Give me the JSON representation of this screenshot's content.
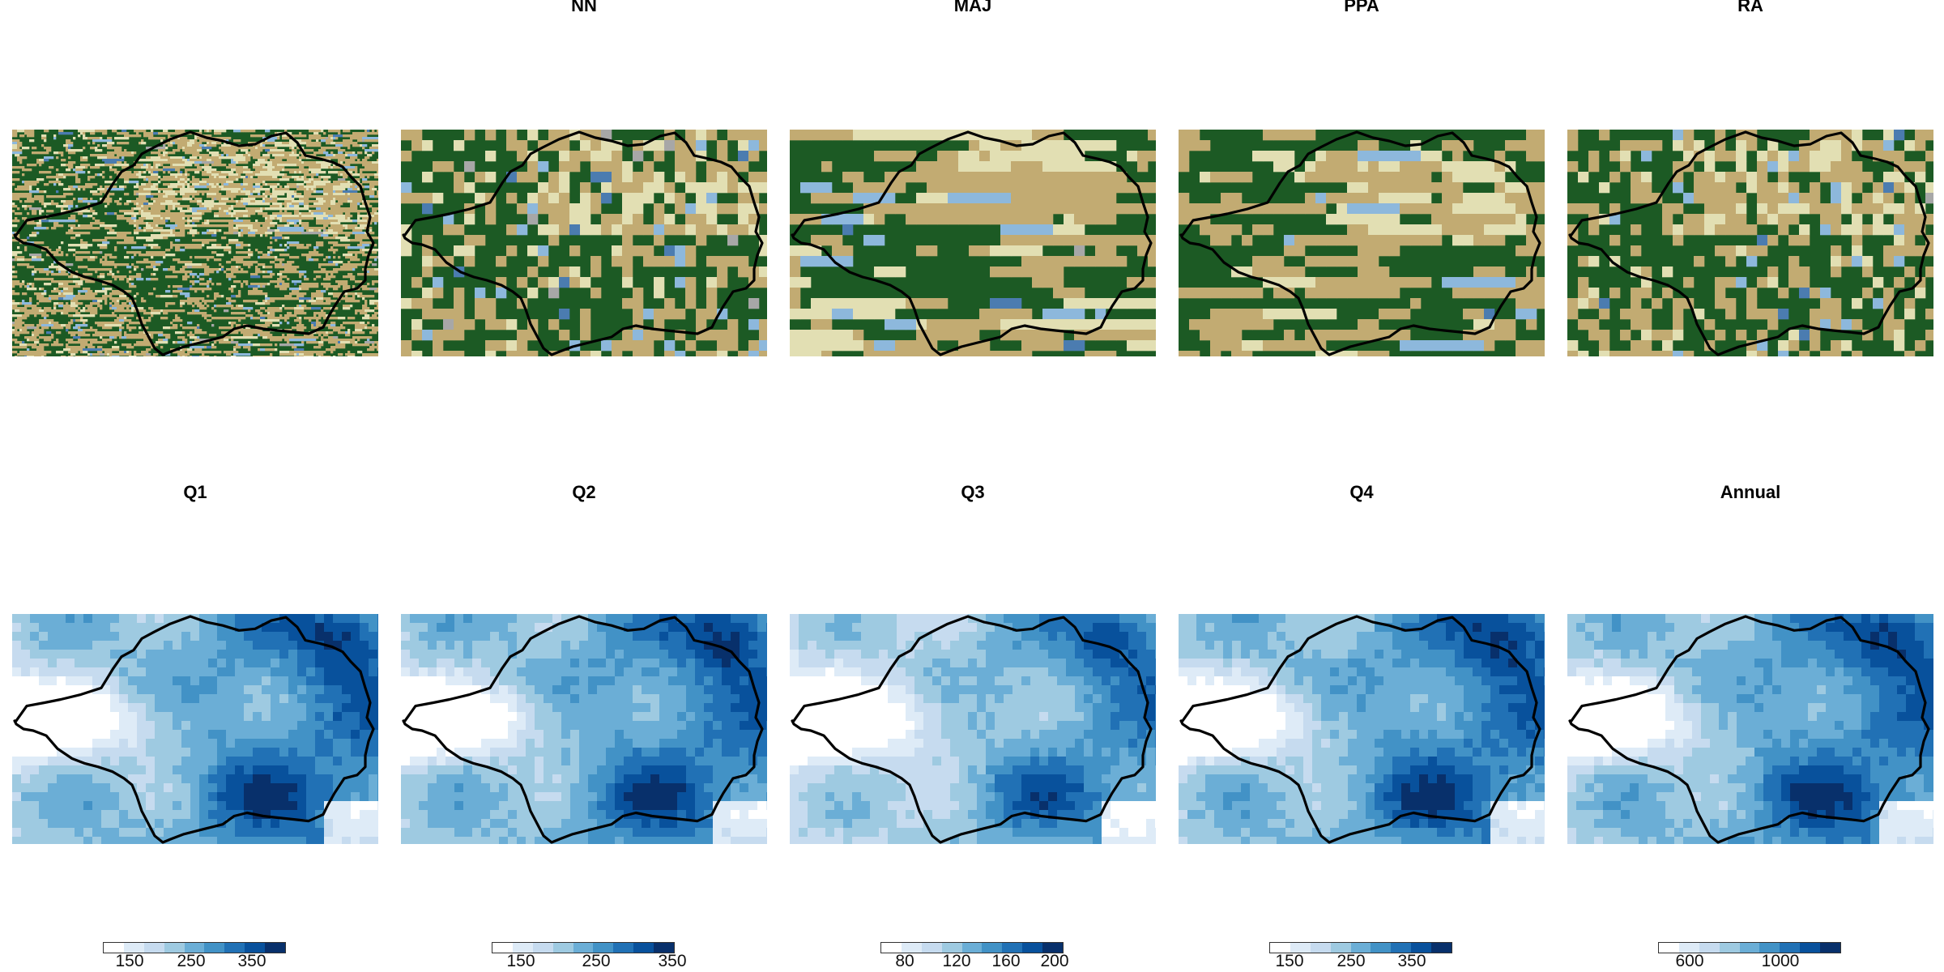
{
  "colors": {
    "landcover": {
      "forest": "#1c5a24",
      "open": "#c2ab72",
      "light": "#e2dfb3",
      "water": "#8db8dc",
      "wetland": "#4b7cb0",
      "bare": "#a7a7a7",
      "green": "#4d9a4a",
      "yellow": "#e6e02c"
    },
    "blues": [
      "#ffffff",
      "#deebf7",
      "#c6dbef",
      "#9ecae1",
      "#6baed6",
      "#4292c6",
      "#2171b5",
      "#08519c",
      "#08306b"
    ],
    "boundary": "#000000"
  },
  "top_row": [
    {
      "title": "",
      "type": "landcover-fine"
    },
    {
      "title": "NN",
      "type": "landcover-coarse"
    },
    {
      "title": "MAJ",
      "type": "landcover-coarse"
    },
    {
      "title": "PPA",
      "type": "landcover-coarse"
    },
    {
      "title": "RA",
      "type": "landcover-coarse"
    }
  ],
  "bottom_row": [
    {
      "title": "Q1",
      "legend": {
        "ticks": [
          "150",
          "250",
          "350"
        ]
      }
    },
    {
      "title": "Q2",
      "legend": {
        "ticks": [
          "150",
          "250",
          "350"
        ]
      }
    },
    {
      "title": "Q3",
      "legend": {
        "ticks": [
          "80",
          "120",
          "160",
          "200"
        ]
      }
    },
    {
      "title": "Q4",
      "legend": {
        "ticks": [
          "150",
          "250",
          "350"
        ]
      }
    },
    {
      "title": "Annual",
      "legend": {
        "ticks": [
          "600",
          "1000"
        ]
      }
    }
  ]
}
